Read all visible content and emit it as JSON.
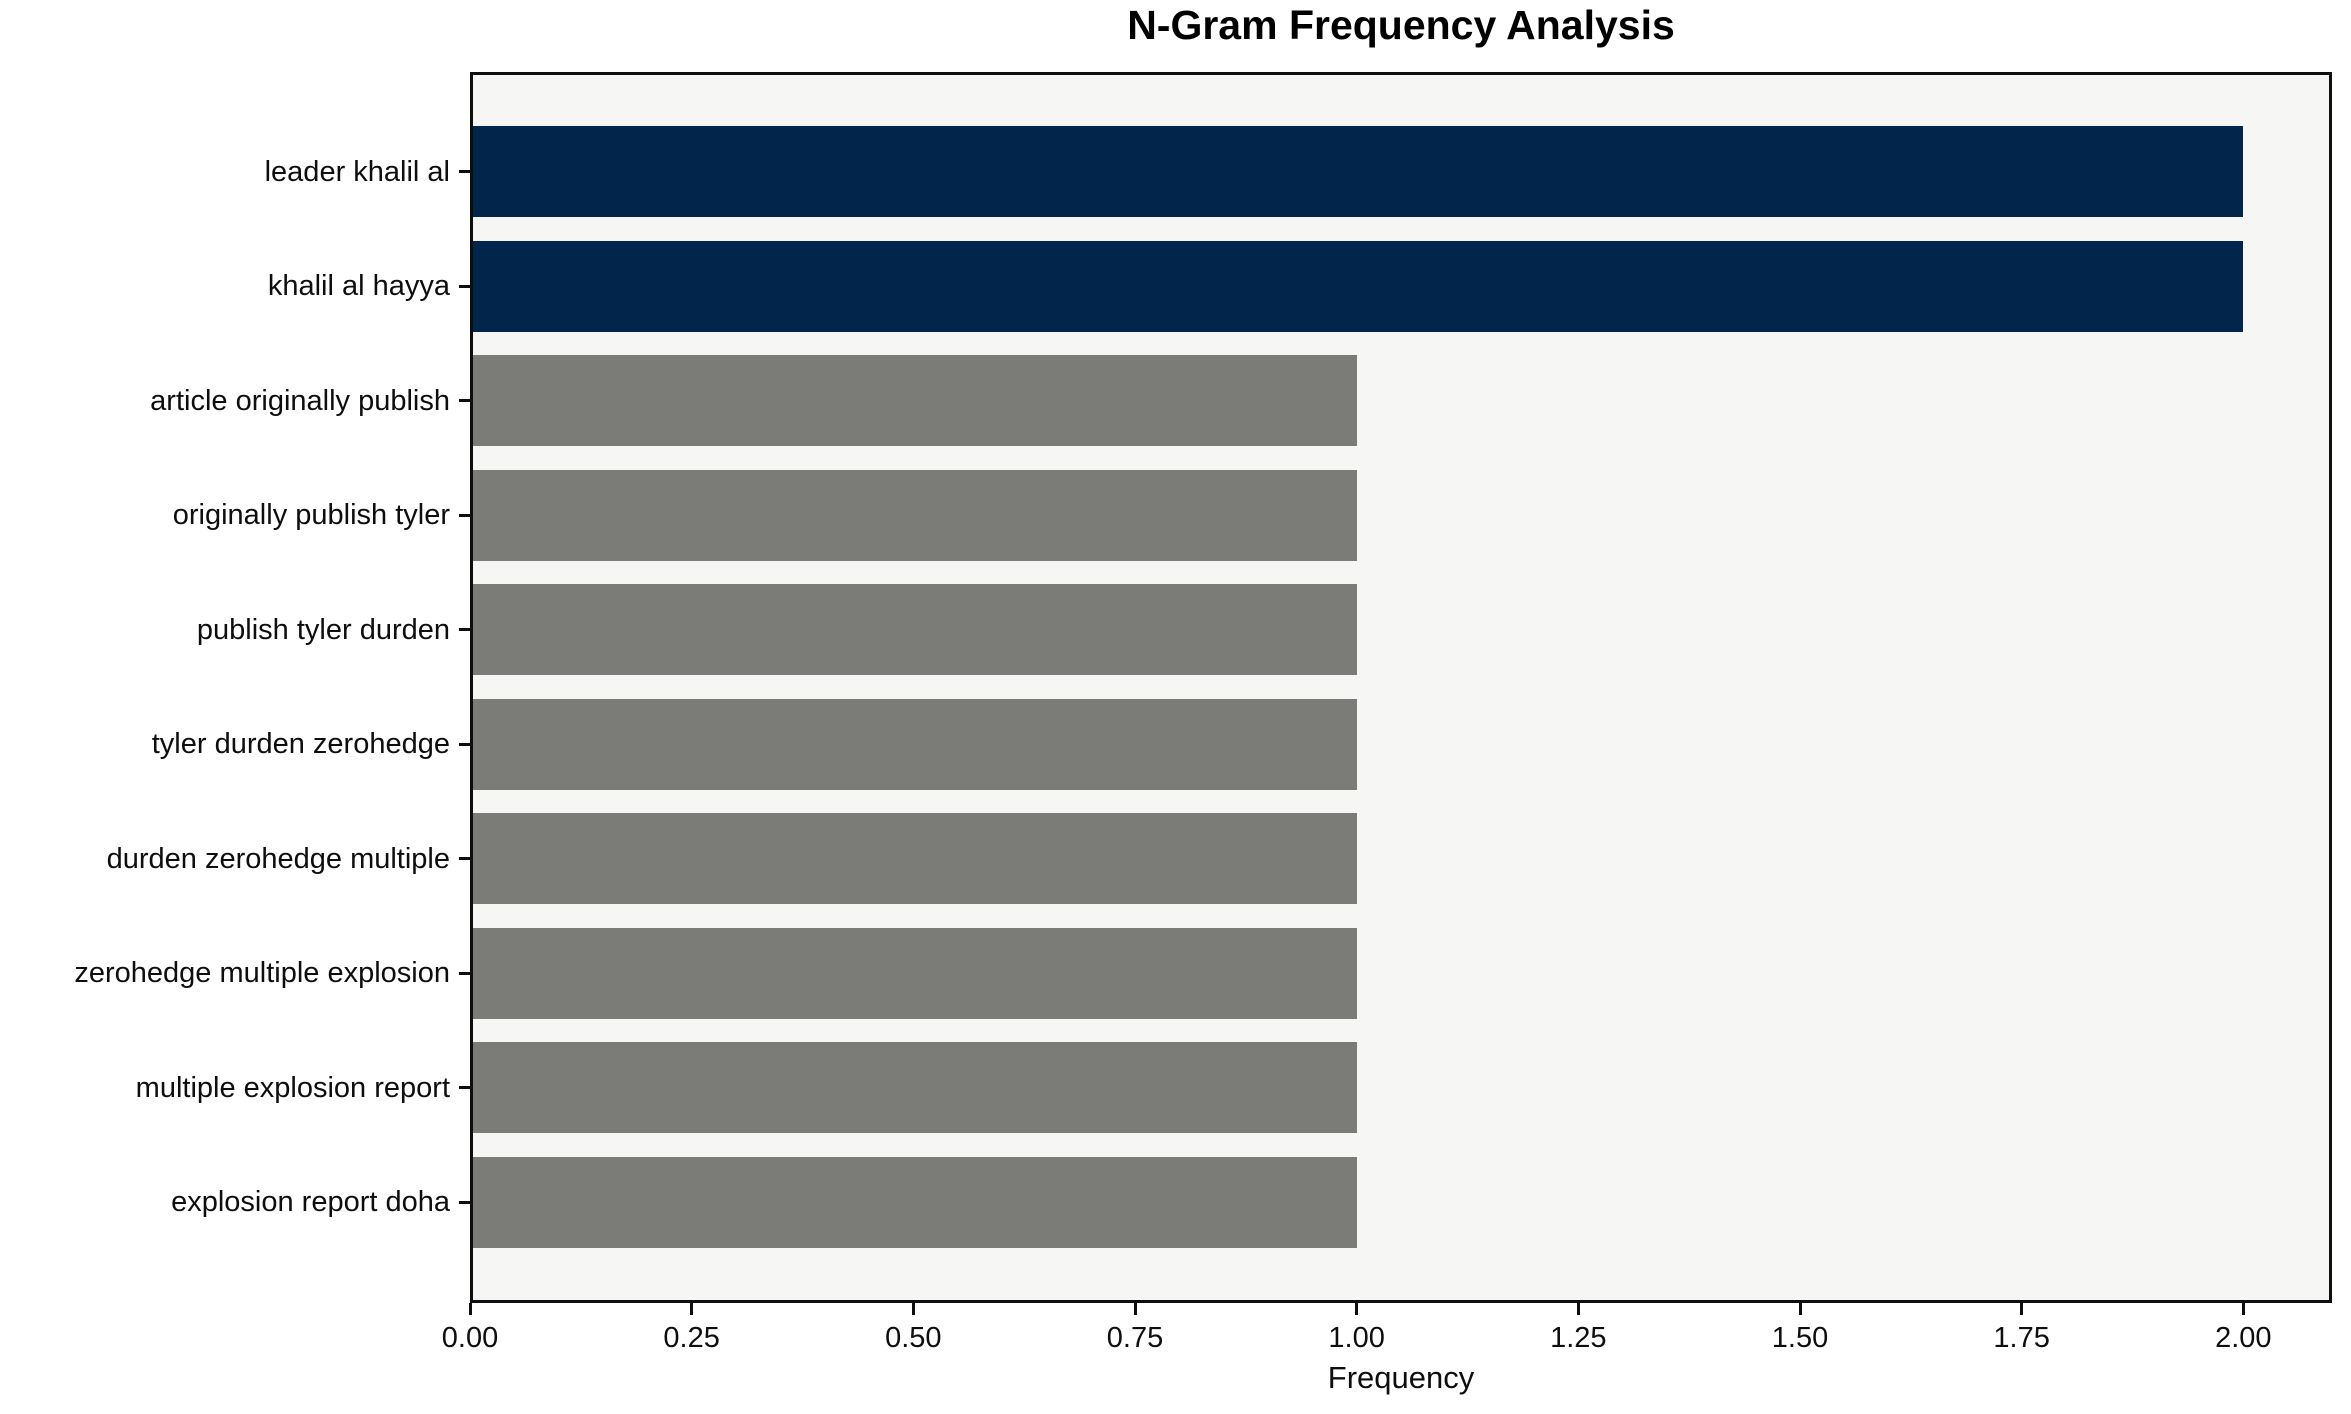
{
  "chart_data": {
    "type": "bar",
    "orientation": "horizontal",
    "title": "N-Gram Frequency Analysis",
    "xlabel": "Frequency",
    "ylabel": "",
    "categories": [
      "leader khalil al",
      "khalil al hayya",
      "article originally publish",
      "originally publish tyler",
      "publish tyler durden",
      "tyler durden zerohedge",
      "durden zerohedge multiple",
      "zerohedge multiple explosion",
      "multiple explosion report",
      "explosion report doha"
    ],
    "values": [
      2,
      2,
      1,
      1,
      1,
      1,
      1,
      1,
      1,
      1
    ],
    "bar_colors": [
      "#02254c",
      "#02254c",
      "#7b7b78",
      "#7b7b78",
      "#7b7b78",
      "#7b7b78",
      "#7b7b78",
      "#7b7b78",
      "#7b7b78",
      "#7b7b78"
    ],
    "xlim": [
      0,
      2.1
    ],
    "xtick_values": [
      0,
      0.25,
      0.5,
      0.75,
      1.0,
      1.25,
      1.5,
      1.75,
      2.0
    ],
    "xtick_labels": [
      "0.00",
      "0.25",
      "0.50",
      "0.75",
      "1.00",
      "1.25",
      "1.50",
      "1.75",
      "2.00"
    ],
    "grid": false,
    "legend": null,
    "colors": {
      "highlight": "#02254c",
      "default": "#7b7b78",
      "plot_background": "#f6f6f5",
      "figure_background": "#ffffff",
      "text": "#0e0e0e"
    }
  }
}
